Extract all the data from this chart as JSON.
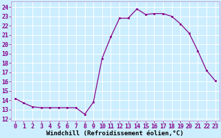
{
  "x": [
    0,
    1,
    2,
    3,
    4,
    5,
    6,
    7,
    8,
    9,
    10,
    11,
    12,
    13,
    14,
    15,
    16,
    17,
    18,
    19,
    20,
    21,
    22,
    23
  ],
  "y": [
    14.2,
    13.7,
    13.3,
    13.2,
    13.2,
    13.2,
    13.2,
    13.2,
    12.5,
    13.8,
    18.5,
    20.8,
    22.8,
    22.8,
    23.8,
    23.2,
    23.3,
    23.3,
    23.0,
    22.2,
    21.2,
    19.3,
    17.2,
    16.1
  ],
  "line_color": "#880088",
  "marker_color": "#880088",
  "bg_color": "#cceeff",
  "grid_color": "#aadddd",
  "xlabel": "Windchill (Refroidissement éolien,°C)",
  "ytick_labels": [
    "12",
    "13",
    "14",
    "15",
    "16",
    "17",
    "18",
    "19",
    "20",
    "21",
    "22",
    "23",
    "24"
  ],
  "ytick_vals": [
    12,
    13,
    14,
    15,
    16,
    17,
    18,
    19,
    20,
    21,
    22,
    23,
    24
  ],
  "xtick_labels": [
    "0",
    "1",
    "2",
    "3",
    "4",
    "5",
    "6",
    "7",
    "8",
    "9",
    "10",
    "11",
    "12",
    "13",
    "14",
    "15",
    "16",
    "17",
    "18",
    "19",
    "20",
    "21",
    "22",
    "23"
  ],
  "ylim": [
    11.8,
    24.6
  ],
  "xlim": [
    -0.5,
    23.5
  ],
  "xlabel_fontsize": 6.5,
  "tick_fontsize": 6.0,
  "linewidth": 0.9,
  "markersize": 2.0
}
